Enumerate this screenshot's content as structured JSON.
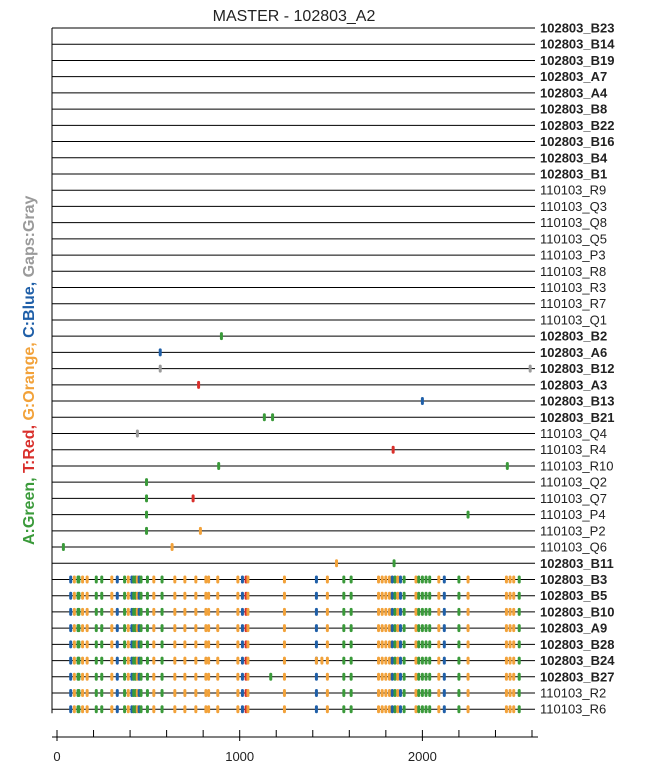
{
  "chart_data": {
    "type": "alignment",
    "title": "MASTER - 102803_A2",
    "legend": [
      {
        "text": "A:Green, ",
        "color": "#3a9a3a"
      },
      {
        "text": "T:Red, ",
        "color": "#d9302c"
      },
      {
        "text": "G:Orange, ",
        "color": "#f2a23a"
      },
      {
        "text": "C:Blue, ",
        "color": "#1f5fa8"
      },
      {
        "text": "Gaps:Gray",
        "color": "#9a9a9a"
      }
    ],
    "colors": {
      "A": "#3a9a3a",
      "T": "#d9302c",
      "G": "#f2a23a",
      "C": "#1f5fa8",
      "gap": "#9a9a9a"
    },
    "xlim": [
      0,
      2600
    ],
    "x_ticks": [
      0,
      1000,
      2000
    ],
    "rows": [
      {
        "label": "102803_B23",
        "bold": true,
        "marks": []
      },
      {
        "label": "102803_B14",
        "bold": true,
        "marks": []
      },
      {
        "label": "102803_B19",
        "bold": true,
        "marks": []
      },
      {
        "label": "102803_A7",
        "bold": true,
        "marks": []
      },
      {
        "label": "102803_A4",
        "bold": true,
        "marks": []
      },
      {
        "label": "102803_B8",
        "bold": true,
        "marks": []
      },
      {
        "label": "102803_B22",
        "bold": true,
        "marks": []
      },
      {
        "label": "102803_B16",
        "bold": true,
        "marks": []
      },
      {
        "label": "102803_B4",
        "bold": true,
        "marks": []
      },
      {
        "label": "102803_B1",
        "bold": true,
        "marks": []
      },
      {
        "label": "110103_R9",
        "bold": false,
        "marks": []
      },
      {
        "label": "110103_Q3",
        "bold": false,
        "marks": []
      },
      {
        "label": "110103_Q8",
        "bold": false,
        "marks": []
      },
      {
        "label": "110103_Q5",
        "bold": false,
        "marks": []
      },
      {
        "label": "110103_P3",
        "bold": false,
        "marks": []
      },
      {
        "label": "110103_R8",
        "bold": false,
        "marks": []
      },
      {
        "label": "110103_R3",
        "bold": false,
        "marks": []
      },
      {
        "label": "110103_R7",
        "bold": false,
        "marks": []
      },
      {
        "label": "110103_Q1",
        "bold": false,
        "marks": []
      },
      {
        "label": "102803_B2",
        "bold": true,
        "marks": [
          [
            900,
            "A"
          ]
        ]
      },
      {
        "label": "102803_A6",
        "bold": true,
        "marks": [
          [
            565,
            "C"
          ]
        ]
      },
      {
        "label": "102803_B12",
        "bold": true,
        "marks": [
          [
            565,
            "gap"
          ],
          [
            2590,
            "gap"
          ]
        ]
      },
      {
        "label": "102803_A3",
        "bold": true,
        "marks": [
          [
            775,
            "T"
          ]
        ]
      },
      {
        "label": "102803_B13",
        "bold": true,
        "marks": [
          [
            2000,
            "C"
          ]
        ]
      },
      {
        "label": "102803_B21",
        "bold": true,
        "marks": [
          [
            1135,
            "A"
          ],
          [
            1180,
            "A"
          ]
        ]
      },
      {
        "label": "110103_Q4",
        "bold": false,
        "marks": [
          [
            440,
            "gap"
          ]
        ]
      },
      {
        "label": "110103_R4",
        "bold": false,
        "marks": [
          [
            1840,
            "T"
          ]
        ]
      },
      {
        "label": "110103_R10",
        "bold": false,
        "marks": [
          [
            885,
            "A"
          ],
          [
            2465,
            "A"
          ]
        ]
      },
      {
        "label": "110103_Q2",
        "bold": false,
        "marks": [
          [
            490,
            "A"
          ]
        ]
      },
      {
        "label": "110103_Q7",
        "bold": false,
        "marks": [
          [
            490,
            "A"
          ],
          [
            745,
            "T"
          ]
        ]
      },
      {
        "label": "110103_P4",
        "bold": false,
        "marks": [
          [
            490,
            "A"
          ],
          [
            2250,
            "A"
          ]
        ]
      },
      {
        "label": "110103_P2",
        "bold": false,
        "marks": [
          [
            490,
            "A"
          ],
          [
            785,
            "G"
          ]
        ]
      },
      {
        "label": "110103_Q6",
        "bold": false,
        "marks": [
          [
            35,
            "A"
          ],
          [
            630,
            "G"
          ]
        ]
      },
      {
        "label": "102803_B11",
        "bold": true,
        "marks": [
          [
            1530,
            "G"
          ],
          [
            1845,
            "A"
          ]
        ]
      }
    ],
    "consensus_rows": [
      "102803_B3",
      "102803_B5",
      "102803_B10",
      "102803_A9",
      "102803_B28",
      "102803_B24",
      "102803_B27",
      "110103_R2",
      "110103_R6"
    ],
    "consensus_bold": [
      true,
      true,
      true,
      true,
      true,
      true,
      true,
      false,
      false
    ],
    "consensus_marks": [
      [
        75,
        "C"
      ],
      [
        95,
        "G"
      ],
      [
        115,
        "A"
      ],
      [
        120,
        "A"
      ],
      [
        140,
        "G"
      ],
      [
        165,
        "G"
      ],
      [
        215,
        "A"
      ],
      [
        245,
        "A"
      ],
      [
        300,
        "G"
      ],
      [
        330,
        "C"
      ],
      [
        370,
        "A"
      ],
      [
        390,
        "G"
      ],
      [
        410,
        "C"
      ],
      [
        420,
        "A"
      ],
      [
        430,
        "A"
      ],
      [
        440,
        "G"
      ],
      [
        450,
        "C"
      ],
      [
        460,
        "A"
      ],
      [
        495,
        "A"
      ],
      [
        530,
        "G"
      ],
      [
        575,
        "A"
      ],
      [
        645,
        "G"
      ],
      [
        700,
        "G"
      ],
      [
        760,
        "G"
      ],
      [
        815,
        "G"
      ],
      [
        830,
        "G"
      ],
      [
        880,
        "G"
      ],
      [
        990,
        "G"
      ],
      [
        1015,
        "C"
      ],
      [
        1035,
        "T"
      ],
      [
        1045,
        "G"
      ],
      [
        1245,
        "G"
      ],
      [
        1420,
        "C"
      ],
      [
        1480,
        "G"
      ],
      [
        1570,
        "A"
      ],
      [
        1610,
        "A"
      ],
      [
        1760,
        "G"
      ],
      [
        1780,
        "G"
      ],
      [
        1800,
        "G"
      ],
      [
        1820,
        "G"
      ],
      [
        1835,
        "C"
      ],
      [
        1850,
        "A"
      ],
      [
        1865,
        "G"
      ],
      [
        1880,
        "C"
      ],
      [
        1900,
        "A"
      ],
      [
        1965,
        "G"
      ],
      [
        1980,
        "A"
      ],
      [
        2000,
        "A"
      ],
      [
        2020,
        "A"
      ],
      [
        2040,
        "A"
      ],
      [
        2090,
        "G"
      ],
      [
        2120,
        "C"
      ],
      [
        2200,
        "A"
      ],
      [
        2250,
        "G"
      ],
      [
        2460,
        "G"
      ],
      [
        2480,
        "G"
      ],
      [
        2500,
        "G"
      ],
      [
        2530,
        "A"
      ]
    ],
    "consensus_extra": {
      "102803_B24": [
        [
          1420,
          "G"
        ],
        [
          1450,
          "G"
        ]
      ],
      "102803_B27": [
        [
          1170,
          "A"
        ]
      ]
    }
  }
}
